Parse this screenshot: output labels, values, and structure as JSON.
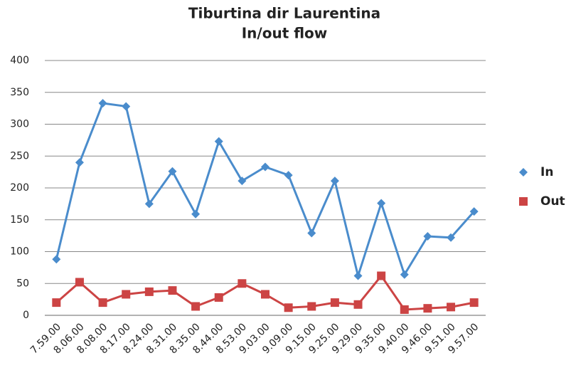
{
  "chart_data": {
    "type": "line",
    "title": "Tiburtina dir Laurentina",
    "subtitle": "In/out flow",
    "categories": [
      "7.59.00",
      "8.06.00",
      "8.08.00",
      "8.17.00",
      "8.24.00",
      "8.31.00",
      "8.35.00",
      "8.44.00",
      "8.53.00",
      "9.03.00",
      "9.09.00",
      "9.15.00",
      "9.25.00",
      "9.29.00",
      "9.35.00",
      "9.40.00",
      "9.46.00",
      "9.51.00",
      "9.57.00"
    ],
    "series": [
      {
        "name": "In",
        "color": "#4a8ccc",
        "marker": "diamond",
        "values": [
          88,
          240,
          333,
          328,
          175,
          226,
          159,
          273,
          211,
          233,
          220,
          129,
          211,
          62,
          176,
          64,
          124,
          122,
          163
        ]
      },
      {
        "name": "Out",
        "color": "#cc4444",
        "marker": "square",
        "values": [
          20,
          52,
          20,
          33,
          37,
          39,
          14,
          28,
          50,
          33,
          12,
          14,
          20,
          17,
          62,
          9,
          11,
          13,
          20
        ]
      }
    ],
    "ylim": [
      0,
      400
    ],
    "yticks": [
      0,
      50,
      100,
      150,
      200,
      250,
      300,
      350,
      400
    ],
    "grid": true,
    "legend": "right"
  }
}
